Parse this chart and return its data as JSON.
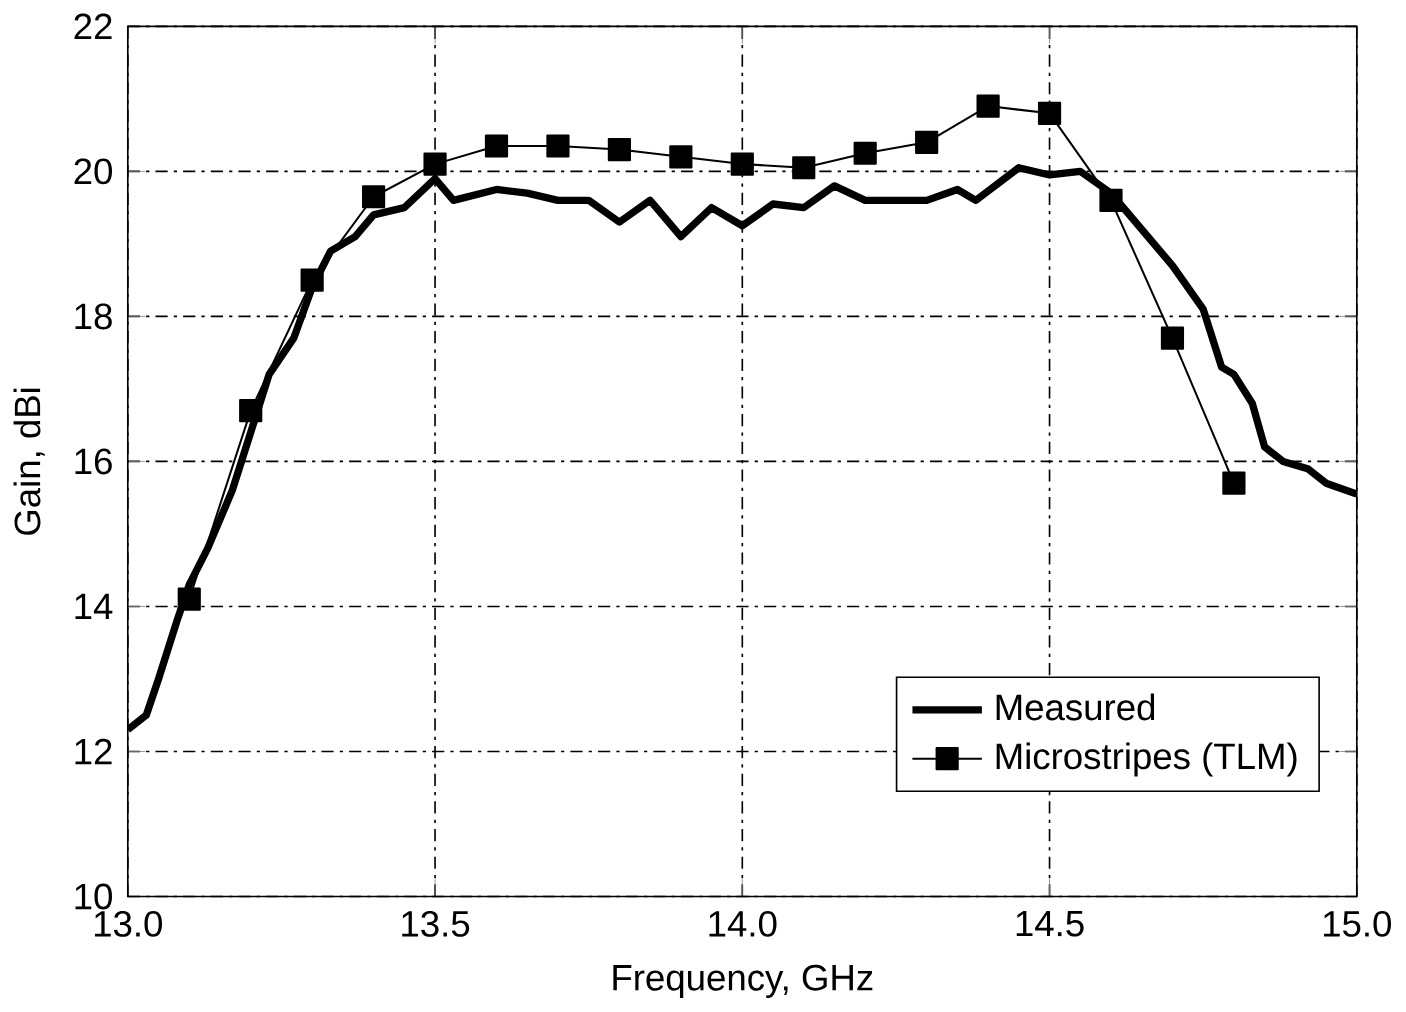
{
  "chart_data": {
    "type": "line",
    "xlabel": "Frequency, GHz",
    "ylabel": "Gain, dBi",
    "xlim": [
      13.0,
      15.0
    ],
    "ylim": [
      10,
      22
    ],
    "xticks": [
      {
        "value": 13.0,
        "label": "13.0"
      },
      {
        "value": 13.5,
        "label": "13.5"
      },
      {
        "value": 14.0,
        "label": "14.0"
      },
      {
        "value": 14.5,
        "label": "14.5"
      },
      {
        "value": 15.0,
        "label": "15.0"
      }
    ],
    "yticks": [
      10,
      12,
      14,
      16,
      18,
      20,
      22
    ],
    "grid": true,
    "legend": "bottom right",
    "series": [
      {
        "name": "Measured",
        "color": "#000000",
        "marker": "none",
        "x": [
          13.0,
          13.03,
          13.05,
          13.08,
          13.1,
          13.13,
          13.17,
          13.2,
          13.23,
          13.27,
          13.3,
          13.33,
          13.37,
          13.4,
          13.45,
          13.5,
          13.53,
          13.6,
          13.65,
          13.7,
          13.75,
          13.8,
          13.85,
          13.9,
          13.95,
          14.0,
          14.05,
          14.1,
          14.15,
          14.2,
          14.3,
          14.35,
          14.38,
          14.45,
          14.5,
          14.55,
          14.6,
          14.65,
          14.7,
          14.75,
          14.78,
          14.8,
          14.83,
          14.85,
          14.88,
          14.92,
          14.95,
          15.0
        ],
        "values": [
          12.3,
          12.5,
          13.0,
          13.8,
          14.3,
          14.8,
          15.6,
          16.4,
          17.2,
          17.7,
          18.4,
          18.9,
          19.1,
          19.4,
          19.5,
          19.9,
          19.6,
          19.75,
          19.7,
          19.6,
          19.6,
          19.3,
          19.6,
          19.1,
          19.5,
          19.25,
          19.55,
          19.5,
          19.8,
          19.6,
          19.6,
          19.75,
          19.6,
          20.05,
          19.95,
          20.0,
          19.7,
          19.2,
          18.7,
          18.1,
          17.3,
          17.2,
          16.8,
          16.2,
          16.0,
          15.9,
          15.7,
          15.55
        ]
      },
      {
        "name": "Microstripes (TLM)",
        "color": "#000000",
        "marker": "square",
        "x": [
          13.1,
          13.2,
          13.3,
          13.4,
          13.5,
          13.6,
          13.7,
          13.8,
          13.9,
          14.0,
          14.1,
          14.2,
          14.3,
          14.4,
          14.5,
          14.6,
          14.7,
          14.8
        ],
        "values": [
          14.1,
          16.7,
          18.5,
          19.65,
          20.1,
          20.35,
          20.35,
          20.3,
          20.2,
          20.1,
          20.05,
          20.25,
          20.4,
          20.9,
          20.8,
          19.6,
          17.7,
          15.7
        ]
      }
    ]
  }
}
